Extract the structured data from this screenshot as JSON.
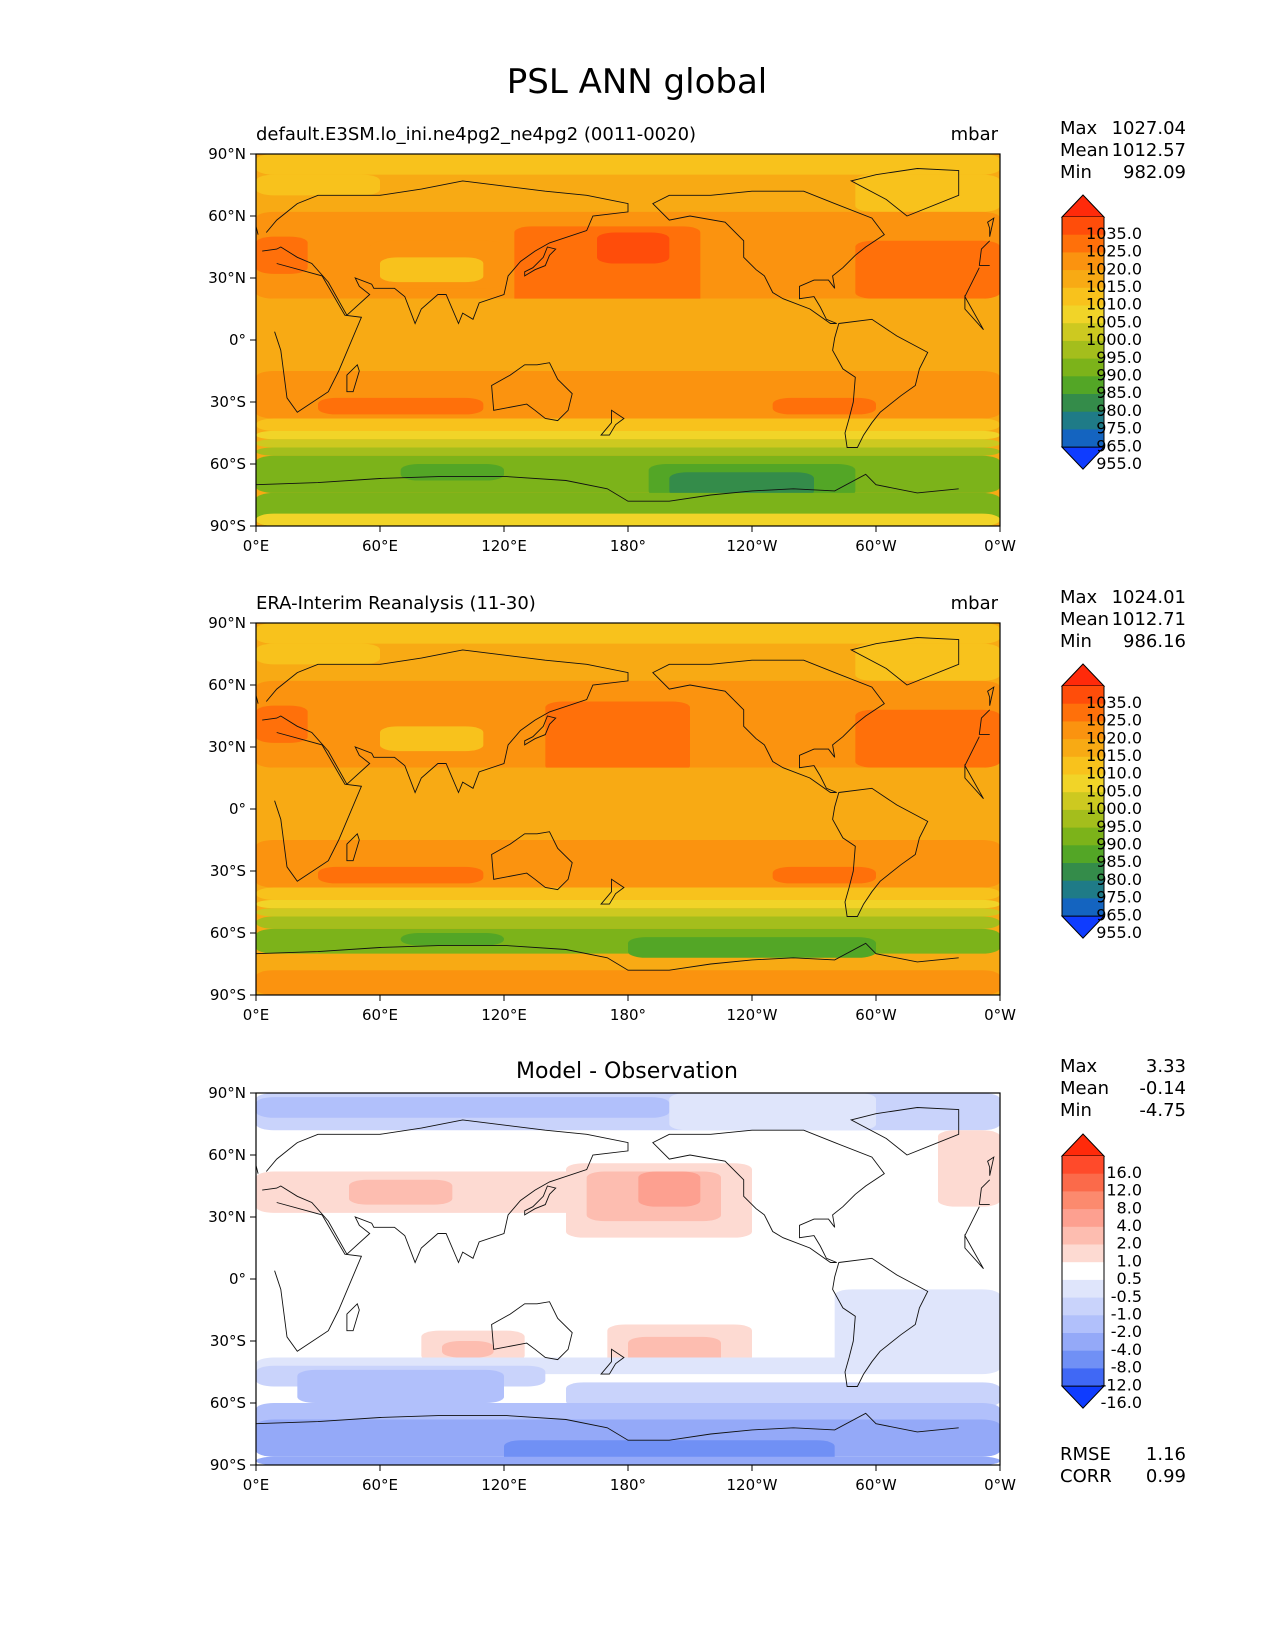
{
  "figure": {
    "title": "PSL ANN global"
  },
  "panels": [
    {
      "left_title": "default.E3SM.lo_ini.ne4pg2_ne4pg2 (0011-0020)",
      "center_title": "",
      "units": "mbar",
      "stats": {
        "labels": [
          "Max",
          "Mean",
          "Min"
        ],
        "values": [
          "1027.04",
          "1012.57",
          "982.09"
        ]
      },
      "colorbar": {
        "levels": [
          "1035.0",
          "1025.0",
          "1020.0",
          "1015.0",
          "1010.0",
          "1005.0",
          "1000.0",
          "995.0",
          "990.0",
          "985.0",
          "980.0",
          "975.0",
          "965.0",
          "955.0"
        ],
        "colors": [
          "#ff2a0a",
          "#ff4d0a",
          "#ff700a",
          "#fb930f",
          "#f8aa14",
          "#f8c21c",
          "#f1d428",
          "#cdc920",
          "#a4be1c",
          "#7cb31a",
          "#53a626",
          "#348c4a",
          "#1f7b87",
          "#1464c0",
          "#0f3cff"
        ]
      }
    },
    {
      "left_title": "ERA-Interim Reanalysis (11-30)",
      "center_title": "",
      "units": "mbar",
      "stats": {
        "labels": [
          "Max",
          "Mean",
          "Min"
        ],
        "values": [
          "1024.01",
          "1012.71",
          "986.16"
        ]
      },
      "colorbar": {
        "levels": [
          "1035.0",
          "1025.0",
          "1020.0",
          "1015.0",
          "1010.0",
          "1005.0",
          "1000.0",
          "995.0",
          "990.0",
          "985.0",
          "980.0",
          "975.0",
          "965.0",
          "955.0"
        ],
        "colors": [
          "#ff2a0a",
          "#ff4d0a",
          "#ff700a",
          "#fb930f",
          "#f8aa14",
          "#f8c21c",
          "#f1d428",
          "#cdc920",
          "#a4be1c",
          "#7cb31a",
          "#53a626",
          "#348c4a",
          "#1f7b87",
          "#1464c0",
          "#0f3cff"
        ]
      }
    },
    {
      "left_title": "",
      "center_title": "Model - Observation",
      "units": "",
      "stats": {
        "labels": [
          "Max",
          "Mean",
          "Min"
        ],
        "values": [
          "3.33",
          "-0.14",
          "-4.75"
        ]
      },
      "colorbar": {
        "levels": [
          "16.0",
          "12.0",
          "8.0",
          "4.0",
          "2.0",
          "1.0",
          "0.5",
          "-0.5",
          "-1.0",
          "-2.0",
          "-4.0",
          "-8.0",
          "-12.0",
          "-16.0"
        ],
        "colors": [
          "#ff2a0a",
          "#ff4a2a",
          "#fb6a4a",
          "#fc8a6e",
          "#fda090",
          "#fdbdb0",
          "#fddad2",
          "#ffffff",
          "#dfe5fb",
          "#c9d3fb",
          "#b1c0fb",
          "#94a9f8",
          "#7090f5",
          "#4068f5",
          "#0f3cff"
        ]
      },
      "extra_stats": {
        "labels": [
          "RMSE",
          "CORR"
        ],
        "values": [
          "1.16",
          "0.99"
        ]
      }
    }
  ],
  "axes": {
    "lon_ticks": [
      "0°E",
      "60°E",
      "120°E",
      "180°",
      "120°W",
      "60°W",
      "0°W"
    ],
    "lat_ticks": [
      "90°N",
      "60°N",
      "30°N",
      "0°",
      "30°S",
      "60°S",
      "90°S"
    ]
  },
  "field_colors": {
    "model": {
      "base": "#f8aa14",
      "high1": "#fb930f",
      "high2": "#ff700a",
      "high3": "#ff4d0a",
      "low1": "#f8c21c",
      "low2": "#f1d428",
      "south1": "#cdc920",
      "south2": "#a4be1c",
      "south3": "#7cb31a",
      "south4": "#53a626",
      "south5": "#348c4a"
    },
    "obs": {
      "base": "#f8aa14",
      "high1": "#fb930f",
      "high2": "#ff700a",
      "low1": "#f8c21c",
      "low2": "#f1d428",
      "south1": "#cdc920",
      "south2": "#a4be1c",
      "south3": "#7cb31a",
      "south4": "#53a626"
    },
    "diff": {
      "base": "#ffffff",
      "pos1": "#fddad2",
      "pos2": "#fdbdb0",
      "pos3": "#fda090",
      "neg1": "#dfe5fb",
      "neg2": "#c9d3fb",
      "neg3": "#b1c0fb",
      "neg4": "#94a9f8",
      "neg5": "#7090f5"
    }
  }
}
